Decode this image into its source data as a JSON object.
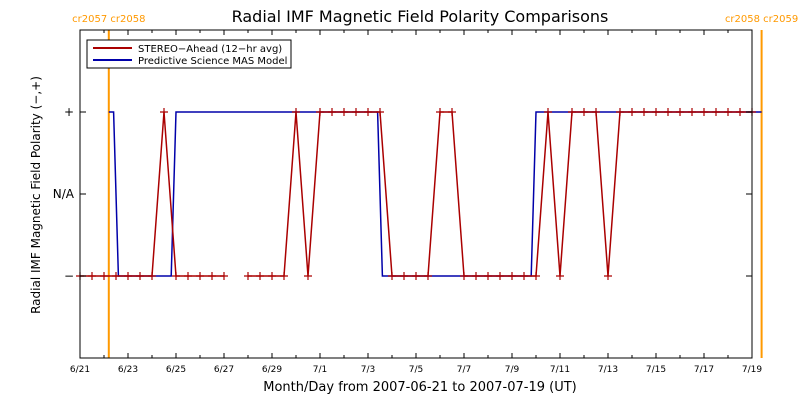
{
  "chart_data": {
    "type": "line",
    "title": "Radial IMF Magnetic Field Polarity Comparisons",
    "xlabel": "Month/Day from 2007-06-21 to 2007-07-19 (UT)",
    "ylabel": "Radial IMF Magnetic Field Polarity (−,+)",
    "x_range_days_from_2007_06_21": [
      0,
      28
    ],
    "x_start_date": "2007-06-21",
    "y_categories": [
      "−",
      "N/A",
      "+"
    ],
    "y_values": [
      -1,
      0,
      1
    ],
    "ylim": [
      -2,
      2
    ],
    "x_tick_labels": [
      "6/21",
      "6/23",
      "6/25",
      "6/27",
      "6/29",
      "7/1",
      "7/3",
      "7/5",
      "7/7",
      "7/9",
      "7/11",
      "7/13",
      "7/15",
      "7/17",
      "7/19"
    ],
    "legend": {
      "placement": "top-left"
    },
    "carrington_markers": [
      {
        "date": "2007-06-22.2",
        "label": "cr2057 cr2058",
        "color": "#ff9900"
      },
      {
        "date": "2007-07-19.4",
        "label": "cr2058 cr2059",
        "color": "#ff9900"
      }
    ],
    "series": [
      {
        "name": "STEREO−Ahead (12−hr avg)",
        "color": "#aa0000",
        "marker": "plus",
        "points": [
          [
            "2007-06-21.00",
            -1
          ],
          [
            "2007-06-21.50",
            -1
          ],
          [
            "2007-06-22.00",
            -1
          ],
          [
            "2007-06-22.50",
            -1
          ],
          [
            "2007-06-23.00",
            -1
          ],
          [
            "2007-06-23.50",
            -1
          ],
          [
            "2007-06-24.00",
            -1
          ],
          [
            "2007-06-24.50",
            1
          ],
          [
            "2007-06-25.00",
            -1
          ],
          [
            "2007-06-25.50",
            -1
          ],
          [
            "2007-06-26.00",
            -1
          ],
          [
            "2007-06-26.50",
            -1
          ],
          [
            "2007-06-27.00",
            -1
          ],
          [
            "2007-06-28.00",
            -1
          ],
          [
            "2007-06-28.50",
            -1
          ],
          [
            "2007-06-29.00",
            -1
          ],
          [
            "2007-06-29.50",
            -1
          ],
          [
            "2007-06-30.00",
            1
          ],
          [
            "2007-06-30.50",
            -1
          ],
          [
            "2007-07-01.00",
            1
          ],
          [
            "2007-07-01.50",
            1
          ],
          [
            "2007-07-02.00",
            1
          ],
          [
            "2007-07-02.50",
            1
          ],
          [
            "2007-07-03.00",
            1
          ],
          [
            "2007-07-03.50",
            1
          ],
          [
            "2007-07-04.00",
            -1
          ],
          [
            "2007-07-04.50",
            -1
          ],
          [
            "2007-07-05.00",
            -1
          ],
          [
            "2007-07-05.50",
            -1
          ],
          [
            "2007-07-06.00",
            1
          ],
          [
            "2007-07-06.50",
            1
          ],
          [
            "2007-07-07.00",
            -1
          ],
          [
            "2007-07-07.50",
            -1
          ],
          [
            "2007-07-08.00",
            -1
          ],
          [
            "2007-07-08.50",
            -1
          ],
          [
            "2007-07-09.00",
            -1
          ],
          [
            "2007-07-09.50",
            -1
          ],
          [
            "2007-07-10.00",
            -1
          ],
          [
            "2007-07-10.50",
            1
          ],
          [
            "2007-07-11.00",
            -1
          ],
          [
            "2007-07-11.50",
            1
          ],
          [
            "2007-07-12.00",
            1
          ],
          [
            "2007-07-12.50",
            1
          ],
          [
            "2007-07-13.00",
            -1
          ],
          [
            "2007-07-13.50",
            1
          ],
          [
            "2007-07-14.00",
            1
          ],
          [
            "2007-07-14.50",
            1
          ],
          [
            "2007-07-15.00",
            1
          ],
          [
            "2007-07-15.50",
            1
          ],
          [
            "2007-07-16.00",
            1
          ],
          [
            "2007-07-16.50",
            1
          ],
          [
            "2007-07-17.00",
            1
          ],
          [
            "2007-07-17.50",
            1
          ],
          [
            "2007-07-18.00",
            1
          ],
          [
            "2007-07-18.50",
            1
          ],
          [
            "2007-07-19.00",
            1
          ]
        ]
      },
      {
        "name": "Predictive Science MAS Model",
        "color": "#0000aa",
        "marker": "none",
        "points": [
          [
            "2007-06-22.20",
            1
          ],
          [
            "2007-06-22.40",
            1
          ],
          [
            "2007-06-22.60",
            -1
          ],
          [
            "2007-06-24.80",
            -1
          ],
          [
            "2007-06-25.00",
            1
          ],
          [
            "2007-07-03.40",
            1
          ],
          [
            "2007-07-03.60",
            -1
          ],
          [
            "2007-07-09.80",
            -1
          ],
          [
            "2007-07-10.00",
            1
          ],
          [
            "2007-07-19.40",
            1
          ]
        ]
      }
    ]
  }
}
